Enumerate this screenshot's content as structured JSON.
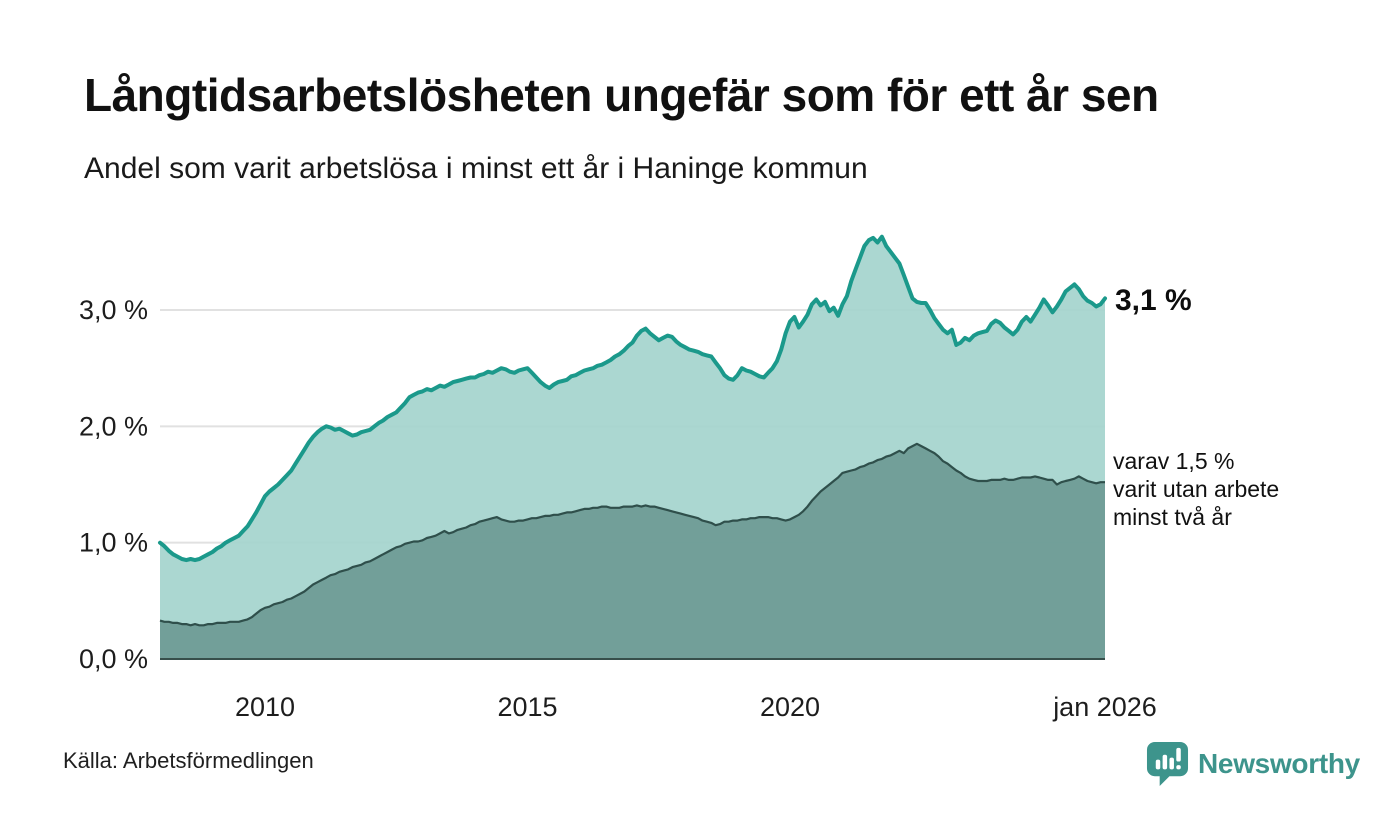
{
  "header": {
    "title": "Långtidsarbetslösheten ungefär som för ett år sen",
    "subtitle": "Andel som varit arbetslösa i minst ett år i Haninge kommun"
  },
  "annotations": {
    "latest_total": "3,1 %",
    "two_year_lines": [
      "varav 1,5 %",
      "varit utan arbete",
      "minst två år"
    ]
  },
  "footer": {
    "source": "Källa: Arbetsförmedlingen",
    "brand": "Newsworthy"
  },
  "colors": {
    "line_total": "#1b998b",
    "fill_total": "#a5d4cd",
    "line_two_year": "#2f4f4b",
    "fill_two_year": "#6f9d97",
    "gridline": "#e1e1e1",
    "axis": "#374f4b",
    "brand_teal": "#3d948c"
  },
  "chart_data": {
    "type": "area",
    "title": "Långtidsarbetslösheten ungefär som för ett år sen",
    "subtitle": "Andel som varit arbetslösa i minst ett år i Haninge kommun",
    "xlabel": "",
    "ylabel": "",
    "x_range": [
      2008,
      2026
    ],
    "x_start": 2008,
    "step_months": 1,
    "ylim": [
      0,
      3.8
    ],
    "grid": true,
    "unit": "%",
    "yticks": [
      {
        "value": 0,
        "label": "0,0 %"
      },
      {
        "value": 1,
        "label": "1,0 %"
      },
      {
        "value": 2,
        "label": "2,0 %"
      },
      {
        "value": 3,
        "label": "3,0 %"
      }
    ],
    "xticks": [
      {
        "value": 2010,
        "label": "2010"
      },
      {
        "value": 2015,
        "label": "2015"
      },
      {
        "value": 2020,
        "label": "2020"
      },
      {
        "value": 2026,
        "label": "jan 2026"
      }
    ],
    "series": [
      {
        "name": "Andel arbetslösa minst ett år",
        "color": "#1b998b",
        "fill": "#a5d4cd",
        "latest_value": 3.1,
        "values": [
          1.0,
          0.97,
          0.93,
          0.9,
          0.88,
          0.86,
          0.85,
          0.86,
          0.85,
          0.86,
          0.88,
          0.9,
          0.92,
          0.95,
          0.97,
          1.0,
          1.02,
          1.04,
          1.06,
          1.1,
          1.14,
          1.2,
          1.26,
          1.33,
          1.4,
          1.44,
          1.47,
          1.5,
          1.54,
          1.58,
          1.62,
          1.68,
          1.74,
          1.8,
          1.86,
          1.91,
          1.95,
          1.98,
          2.0,
          1.99,
          1.97,
          1.98,
          1.96,
          1.94,
          1.92,
          1.93,
          1.95,
          1.96,
          1.97,
          2.0,
          2.03,
          2.05,
          2.08,
          2.1,
          2.12,
          2.16,
          2.2,
          2.25,
          2.27,
          2.29,
          2.3,
          2.32,
          2.31,
          2.33,
          2.35,
          2.34,
          2.36,
          2.38,
          2.39,
          2.4,
          2.41,
          2.42,
          2.42,
          2.44,
          2.45,
          2.47,
          2.46,
          2.48,
          2.5,
          2.49,
          2.47,
          2.46,
          2.48,
          2.49,
          2.5,
          2.46,
          2.42,
          2.38,
          2.35,
          2.33,
          2.36,
          2.38,
          2.39,
          2.4,
          2.43,
          2.44,
          2.46,
          2.48,
          2.49,
          2.5,
          2.52,
          2.53,
          2.55,
          2.57,
          2.6,
          2.62,
          2.65,
          2.69,
          2.72,
          2.78,
          2.82,
          2.84,
          2.8,
          2.77,
          2.74,
          2.76,
          2.78,
          2.77,
          2.73,
          2.7,
          2.68,
          2.66,
          2.65,
          2.64,
          2.62,
          2.61,
          2.6,
          2.55,
          2.5,
          2.44,
          2.41,
          2.4,
          2.44,
          2.5,
          2.48,
          2.47,
          2.45,
          2.43,
          2.42,
          2.46,
          2.5,
          2.56,
          2.66,
          2.8,
          2.9,
          2.94,
          2.85,
          2.9,
          2.96,
          3.05,
          3.09,
          3.04,
          3.07,
          2.99,
          3.02,
          2.95,
          3.05,
          3.12,
          3.25,
          3.35,
          3.45,
          3.55,
          3.6,
          3.62,
          3.58,
          3.63,
          3.55,
          3.5,
          3.45,
          3.4,
          3.3,
          3.2,
          3.1,
          3.07,
          3.06,
          3.06,
          3.0,
          2.93,
          2.88,
          2.83,
          2.8,
          2.83,
          2.7,
          2.72,
          2.76,
          2.74,
          2.78,
          2.8,
          2.81,
          2.82,
          2.88,
          2.91,
          2.89,
          2.85,
          2.82,
          2.79,
          2.83,
          2.9,
          2.94,
          2.9,
          2.96,
          3.02,
          3.09,
          3.04,
          2.98,
          3.03,
          3.09,
          3.16,
          3.19,
          3.22,
          3.18,
          3.12,
          3.08,
          3.06,
          3.03,
          3.05,
          3.1
        ]
      },
      {
        "name": "varav utan arbete minst två år",
        "color": "#2f4f4b",
        "fill": "#6f9d97",
        "latest_value": 1.5,
        "values": [
          0.33,
          0.32,
          0.32,
          0.31,
          0.31,
          0.3,
          0.3,
          0.29,
          0.3,
          0.29,
          0.29,
          0.3,
          0.3,
          0.31,
          0.31,
          0.31,
          0.32,
          0.32,
          0.32,
          0.33,
          0.34,
          0.36,
          0.39,
          0.42,
          0.44,
          0.45,
          0.47,
          0.48,
          0.49,
          0.51,
          0.52,
          0.54,
          0.56,
          0.58,
          0.61,
          0.64,
          0.66,
          0.68,
          0.7,
          0.72,
          0.73,
          0.75,
          0.76,
          0.77,
          0.79,
          0.8,
          0.81,
          0.83,
          0.84,
          0.86,
          0.88,
          0.9,
          0.92,
          0.94,
          0.96,
          0.97,
          0.99,
          1.0,
          1.01,
          1.01,
          1.02,
          1.04,
          1.05,
          1.06,
          1.08,
          1.1,
          1.08,
          1.09,
          1.11,
          1.12,
          1.13,
          1.15,
          1.16,
          1.18,
          1.19,
          1.2,
          1.21,
          1.22,
          1.2,
          1.19,
          1.18,
          1.18,
          1.19,
          1.19,
          1.2,
          1.21,
          1.21,
          1.22,
          1.23,
          1.23,
          1.24,
          1.24,
          1.25,
          1.26,
          1.26,
          1.27,
          1.28,
          1.29,
          1.29,
          1.3,
          1.3,
          1.31,
          1.31,
          1.3,
          1.3,
          1.3,
          1.31,
          1.31,
          1.31,
          1.32,
          1.31,
          1.32,
          1.31,
          1.31,
          1.3,
          1.29,
          1.28,
          1.27,
          1.26,
          1.25,
          1.24,
          1.23,
          1.22,
          1.21,
          1.19,
          1.18,
          1.17,
          1.15,
          1.16,
          1.18,
          1.18,
          1.19,
          1.19,
          1.2,
          1.2,
          1.21,
          1.21,
          1.22,
          1.22,
          1.22,
          1.21,
          1.21,
          1.2,
          1.19,
          1.2,
          1.22,
          1.24,
          1.27,
          1.31,
          1.36,
          1.4,
          1.44,
          1.47,
          1.5,
          1.53,
          1.56,
          1.6,
          1.61,
          1.62,
          1.63,
          1.65,
          1.66,
          1.68,
          1.69,
          1.71,
          1.72,
          1.74,
          1.75,
          1.77,
          1.79,
          1.77,
          1.81,
          1.83,
          1.85,
          1.83,
          1.81,
          1.79,
          1.77,
          1.74,
          1.7,
          1.68,
          1.65,
          1.62,
          1.6,
          1.57,
          1.55,
          1.54,
          1.53,
          1.53,
          1.53,
          1.54,
          1.54,
          1.54,
          1.55,
          1.54,
          1.54,
          1.55,
          1.56,
          1.56,
          1.56,
          1.57,
          1.56,
          1.55,
          1.54,
          1.54,
          1.5,
          1.52,
          1.53,
          1.54,
          1.55,
          1.57,
          1.55,
          1.53,
          1.52,
          1.51,
          1.52,
          1.52
        ]
      }
    ]
  }
}
